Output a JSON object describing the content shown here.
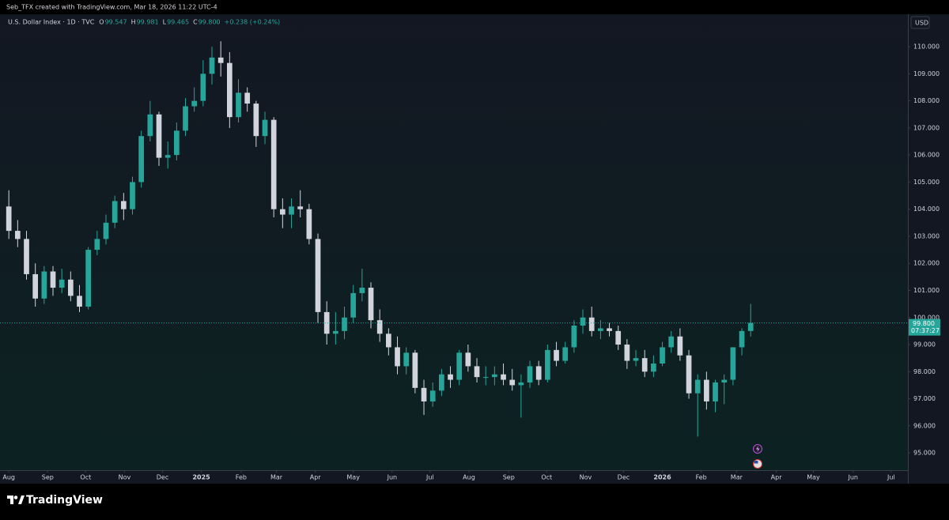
{
  "chart_data": {
    "type": "candlestick",
    "credit": "Seb_TFX created with TradingView.com, Mar 18, 2026 11:22 UTC-4",
    "symbol": "U.S. Dollar Index · 1D · TVC",
    "quote": [
      {
        "label": "O",
        "value": "99.547"
      },
      {
        "label": "H",
        "value": "99.981"
      },
      {
        "label": "L",
        "value": "99.465"
      },
      {
        "label": "C",
        "value": "99.800"
      }
    ],
    "change": "+0.238 (+0.24%)",
    "currency": "USD",
    "last_price": {
      "value": 99.8,
      "label": "99.800"
    },
    "countdown": "07:37:27",
    "brand": "TradingView",
    "up_color": "#26a69a",
    "down_color": "#d1d4dc",
    "open": [
      104.1,
      103.2,
      102.9,
      101.6,
      100.7,
      101.7,
      101.1,
      101.4,
      100.8,
      100.4,
      102.5,
      102.9,
      103.5,
      104.3,
      104.0,
      105.0,
      106.7,
      107.5,
      105.9,
      106.0,
      106.9,
      107.8,
      108.0,
      109.0,
      109.6,
      109.4,
      107.4,
      108.3,
      107.9,
      106.7,
      107.3,
      104.0,
      103.8,
      104.1,
      104.0,
      102.9,
      100.2,
      99.4,
      99.5,
      100.0,
      100.9,
      101.1,
      99.9,
      99.4,
      98.9,
      98.2,
      98.7,
      97.4,
      96.9,
      97.3,
      97.9,
      97.7,
      98.7,
      98.2,
      97.8,
      97.8,
      97.9,
      97.7,
      97.5,
      97.6,
      98.2,
      97.7,
      98.8,
      98.4,
      98.9,
      99.7,
      100.0,
      99.5,
      99.6,
      99.5,
      99.0,
      98.4,
      98.5,
      98.0,
      98.3,
      98.9,
      99.3,
      98.6,
      97.2,
      97.7,
      96.9,
      97.6,
      97.7,
      98.9,
      99.5
    ],
    "high": [
      104.7,
      103.6,
      103.2,
      102.0,
      101.9,
      101.9,
      101.8,
      101.7,
      101.2,
      102.6,
      103.2,
      103.8,
      104.5,
      104.6,
      105.2,
      106.9,
      108.0,
      107.6,
      106.5,
      107.2,
      108.1,
      108.5,
      109.5,
      110.0,
      110.2,
      109.8,
      108.8,
      108.5,
      108.0,
      107.6,
      107.4,
      104.4,
      104.4,
      104.7,
      104.2,
      103.1,
      100.6,
      100.2,
      100.4,
      101.2,
      101.8,
      101.3,
      100.3,
      99.6,
      99.3,
      98.9,
      98.8,
      97.7,
      97.6,
      98.1,
      98.2,
      98.8,
      99.0,
      98.5,
      98.2,
      98.2,
      98.3,
      98.1,
      97.9,
      98.4,
      98.4,
      99.0,
      99.1,
      99.1,
      99.9,
      100.3,
      100.4,
      99.9,
      99.8,
      99.7,
      99.2,
      98.8,
      98.8,
      98.6,
      99.1,
      99.5,
      99.6,
      98.8,
      97.9,
      98.0,
      97.7,
      97.9,
      98.9,
      99.6,
      100.5
    ],
    "low": [
      102.9,
      102.6,
      101.4,
      100.4,
      100.5,
      100.8,
      100.9,
      100.6,
      100.2,
      100.3,
      102.3,
      102.7,
      103.3,
      103.6,
      103.8,
      104.8,
      106.5,
      105.6,
      105.5,
      105.8,
      106.7,
      107.6,
      107.8,
      108.6,
      108.9,
      107.0,
      107.2,
      107.6,
      106.3,
      106.4,
      103.7,
      103.3,
      103.3,
      103.7,
      102.7,
      99.8,
      99.0,
      99.0,
      99.2,
      99.8,
      100.6,
      99.6,
      99.1,
      98.6,
      97.9,
      97.9,
      97.2,
      96.4,
      96.7,
      97.1,
      97.4,
      97.5,
      98.0,
      97.6,
      97.5,
      97.5,
      97.5,
      97.3,
      96.3,
      97.4,
      97.5,
      97.6,
      98.2,
      98.3,
      98.7,
      99.4,
      99.3,
      99.2,
      99.3,
      98.8,
      98.1,
      98.2,
      97.8,
      97.8,
      98.2,
      98.7,
      98.4,
      97.0,
      95.6,
      96.6,
      96.5,
      96.8,
      97.5,
      98.6,
      99.3
    ],
    "close": [
      103.2,
      102.9,
      101.6,
      100.7,
      101.7,
      101.1,
      101.4,
      100.8,
      100.4,
      102.5,
      102.9,
      103.5,
      104.3,
      104.0,
      105.0,
      106.7,
      107.5,
      105.9,
      106.0,
      106.9,
      107.8,
      108.0,
      109.0,
      109.6,
      109.4,
      107.4,
      108.3,
      107.9,
      106.7,
      107.3,
      104.0,
      103.8,
      104.1,
      104.0,
      102.9,
      100.2,
      99.4,
      99.5,
      100.0,
      100.9,
      101.1,
      99.9,
      99.4,
      98.9,
      98.2,
      98.7,
      97.4,
      96.9,
      97.3,
      97.9,
      97.7,
      98.7,
      98.2,
      97.8,
      97.8,
      97.9,
      97.7,
      97.5,
      97.6,
      98.2,
      97.7,
      98.8,
      98.4,
      98.9,
      99.7,
      100.0,
      99.5,
      99.6,
      99.5,
      99.0,
      98.4,
      98.5,
      98.0,
      98.3,
      98.9,
      99.3,
      98.6,
      97.2,
      97.7,
      96.9,
      97.6,
      97.7,
      98.9,
      99.5,
      99.8
    ],
    "xlim": [
      -1,
      101.8
    ],
    "xticks": [
      {
        "value": 0,
        "label": "Aug"
      },
      {
        "value": 4.4,
        "label": "Sep"
      },
      {
        "value": 8.7,
        "label": "Oct"
      },
      {
        "value": 13.1,
        "label": "Nov"
      },
      {
        "value": 17.4,
        "label": "Dec"
      },
      {
        "value": 21.8,
        "label": "2025"
      },
      {
        "value": 26.3,
        "label": "Feb"
      },
      {
        "value": 30.3,
        "label": "Mar"
      },
      {
        "value": 34.7,
        "label": "Apr"
      },
      {
        "value": 39,
        "label": "May"
      },
      {
        "value": 43.4,
        "label": "Jun"
      },
      {
        "value": 47.7,
        "label": "Jul"
      },
      {
        "value": 52.1,
        "label": "Aug"
      },
      {
        "value": 56.6,
        "label": "Sep"
      },
      {
        "value": 60.9,
        "label": "Oct"
      },
      {
        "value": 65.3,
        "label": "Nov"
      },
      {
        "value": 69.6,
        "label": "Dec"
      },
      {
        "value": 74,
        "label": "2026"
      },
      {
        "value": 78.4,
        "label": "Feb"
      },
      {
        "value": 82.4,
        "label": "Mar"
      },
      {
        "value": 86.9,
        "label": "Apr"
      },
      {
        "value": 91.1,
        "label": "May"
      },
      {
        "value": 95.6,
        "label": "Jun"
      },
      {
        "value": 99.9,
        "label": "Jul"
      }
    ],
    "ylim": [
      94.36,
      111.2
    ],
    "yticks": [
      {
        "value": 95,
        "label": "95.000"
      },
      {
        "value": 96,
        "label": "96.000"
      },
      {
        "value": 97,
        "label": "97.000"
      },
      {
        "value": 98,
        "label": "98.000"
      },
      {
        "value": 99,
        "label": "99.000"
      },
      {
        "value": 100,
        "label": "100.000"
      },
      {
        "value": 101,
        "label": "101.000"
      },
      {
        "value": 102,
        "label": "102.000"
      },
      {
        "value": 103,
        "label": "103.000"
      },
      {
        "value": 104,
        "label": "104.000"
      },
      {
        "value": 105,
        "label": "105.000"
      },
      {
        "value": 106,
        "label": "106.000"
      },
      {
        "value": 107,
        "label": "107.000"
      },
      {
        "value": 108,
        "label": "108.000"
      },
      {
        "value": 109,
        "label": "109.000"
      },
      {
        "value": 110,
        "label": "110.000"
      }
    ]
  }
}
